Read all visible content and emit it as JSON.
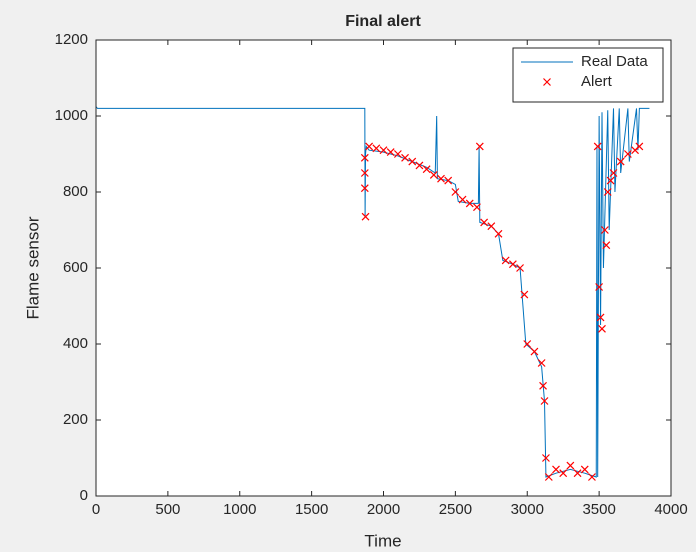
{
  "chart_data": {
    "type": "line",
    "title": "Final alert",
    "x_label": "Time",
    "y_label": "Flame sensor",
    "xlim": [
      0,
      4000
    ],
    "xticks": [
      0,
      500,
      1000,
      1500,
      2000,
      2500,
      3000,
      3500,
      4000
    ],
    "ylim": [
      0,
      1200
    ],
    "yticks": [
      0,
      200,
      400,
      600,
      800,
      1000,
      1200
    ],
    "legend": "northeast",
    "grid": false,
    "series": [
      {
        "name": "Real Data",
        "type": "line",
        "color": "#0072bd",
        "x": [
          0,
          10,
          1870,
          1872,
          1875,
          1880,
          1900,
          2000,
          2100,
          2200,
          2300,
          2360,
          2370,
          2375,
          2450,
          2500,
          2520,
          2600,
          2660,
          2665,
          2670,
          2750,
          2800,
          2830,
          2900,
          2950,
          2970,
          2990,
          3050,
          3100,
          3120,
          3130,
          3200,
          3300,
          3400,
          3480,
          3485,
          3490,
          3500,
          3510,
          3520,
          3530,
          3560,
          3570,
          3600,
          3610,
          3640,
          3650,
          3700,
          3710,
          3760,
          3770,
          3780,
          3850
        ],
        "values": [
          1025,
          1020,
          1020,
          735,
          900,
          920,
          910,
          905,
          895,
          880,
          865,
          850,
          1000,
          835,
          830,
          820,
          775,
          770,
          770,
          920,
          720,
          710,
          690,
          620,
          610,
          600,
          500,
          400,
          380,
          340,
          250,
          50,
          60,
          70,
          60,
          50,
          920,
          50,
          1000,
          450,
          1010,
          600,
          1015,
          700,
          1020,
          800,
          1020,
          850,
          1020,
          880,
          1020,
          910,
          1020,
          1020
        ]
      },
      {
        "name": "Alert",
        "type": "scatter",
        "color": "#ff0000",
        "x": [
          1870,
          1870,
          1870,
          1875,
          1900,
          1950,
          2000,
          2050,
          2100,
          2150,
          2200,
          2250,
          2300,
          2350,
          2400,
          2450,
          2500,
          2550,
          2600,
          2650,
          2670,
          2700,
          2750,
          2800,
          2850,
          2900,
          2950,
          2980,
          3000,
          3050,
          3100,
          3110,
          3120,
          3130,
          3150,
          3200,
          3250,
          3300,
          3350,
          3400,
          3450,
          3490,
          3500,
          3510,
          3520,
          3540,
          3550,
          3560,
          3580,
          3600,
          3650,
          3700,
          3750,
          3780
        ],
        "values": [
          890,
          850,
          810,
          735,
          920,
          915,
          910,
          905,
          900,
          890,
          880,
          870,
          860,
          845,
          835,
          830,
          800,
          780,
          770,
          760,
          920,
          720,
          710,
          690,
          620,
          610,
          600,
          530,
          400,
          380,
          350,
          290,
          250,
          100,
          50,
          70,
          60,
          80,
          60,
          70,
          50,
          920,
          550,
          470,
          440,
          700,
          660,
          800,
          830,
          850,
          880,
          900,
          910,
          920
        ]
      }
    ]
  }
}
